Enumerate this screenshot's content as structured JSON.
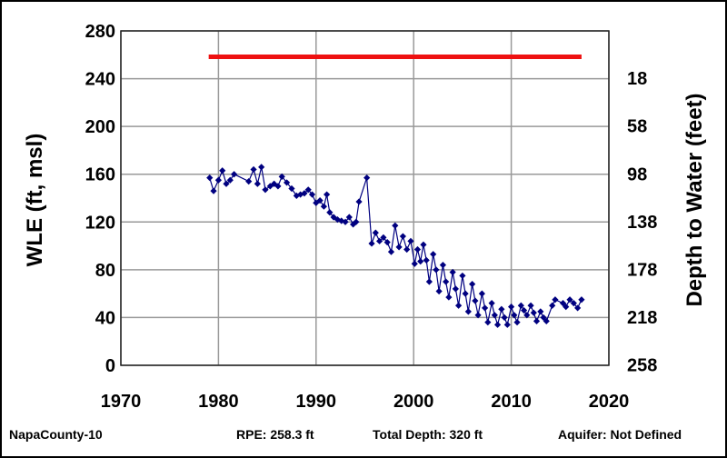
{
  "chart_data": {
    "type": "line",
    "y_left_label": "WLE (ft, msl)",
    "y_right_label": "Depth to Water (feet)",
    "xlim": [
      1970,
      2020
    ],
    "ylim": [
      0,
      280
    ],
    "x_ticks": [
      "1970",
      "1980",
      "1990",
      "2000",
      "2010",
      "2020"
    ],
    "y_left_ticks": [
      "0",
      "40",
      "80",
      "120",
      "160",
      "200",
      "240",
      "280"
    ],
    "y_right_ticks": [
      "258",
      "218",
      "178",
      "138",
      "98",
      "58",
      "18"
    ],
    "grid": true,
    "reference_line": {
      "value": 258.3,
      "x_range": [
        1979,
        2017.2
      ],
      "color": "#ee1111"
    },
    "series": [
      {
        "color": "#000080",
        "points": [
          [
            1979.1,
            157
          ],
          [
            1979.5,
            146
          ],
          [
            1980.0,
            155
          ],
          [
            1980.4,
            163
          ],
          [
            1980.8,
            152
          ],
          [
            1981.2,
            155
          ],
          [
            1981.6,
            160
          ],
          [
            1983.1,
            154
          ],
          [
            1983.6,
            164
          ],
          [
            1984.0,
            152
          ],
          [
            1984.4,
            166
          ],
          [
            1984.8,
            147
          ],
          [
            1985.3,
            150
          ],
          [
            1985.7,
            152
          ],
          [
            1986.1,
            150
          ],
          [
            1986.5,
            158
          ],
          [
            1987.0,
            153
          ],
          [
            1987.5,
            148
          ],
          [
            1988.0,
            142
          ],
          [
            1988.4,
            143
          ],
          [
            1988.8,
            144
          ],
          [
            1989.2,
            147
          ],
          [
            1989.6,
            143
          ],
          [
            1990.0,
            136
          ],
          [
            1990.4,
            138
          ],
          [
            1990.8,
            133
          ],
          [
            1991.1,
            143
          ],
          [
            1991.4,
            128
          ],
          [
            1991.8,
            124
          ],
          [
            1992.2,
            122
          ],
          [
            1992.6,
            121
          ],
          [
            1993.0,
            120
          ],
          [
            1993.4,
            124
          ],
          [
            1993.8,
            118
          ],
          [
            1994.1,
            120
          ],
          [
            1994.4,
            137
          ],
          [
            1995.2,
            157
          ],
          [
            1995.7,
            102
          ],
          [
            1996.1,
            111
          ],
          [
            1996.5,
            104
          ],
          [
            1996.9,
            107
          ],
          [
            1997.3,
            103
          ],
          [
            1997.7,
            95
          ],
          [
            1998.1,
            117
          ],
          [
            1998.5,
            99
          ],
          [
            1998.9,
            108
          ],
          [
            1999.3,
            97
          ],
          [
            1999.7,
            104
          ],
          [
            2000.1,
            85
          ],
          [
            2000.4,
            97
          ],
          [
            2000.7,
            87
          ],
          [
            2001.0,
            101
          ],
          [
            2001.3,
            88
          ],
          [
            2001.6,
            70
          ],
          [
            2002.0,
            93
          ],
          [
            2002.3,
            80
          ],
          [
            2002.6,
            62
          ],
          [
            2003.0,
            84
          ],
          [
            2003.3,
            70
          ],
          [
            2003.6,
            57
          ],
          [
            2004.0,
            78
          ],
          [
            2004.3,
            64
          ],
          [
            2004.6,
            50
          ],
          [
            2005.0,
            75
          ],
          [
            2005.3,
            60
          ],
          [
            2005.6,
            45
          ],
          [
            2006.0,
            68
          ],
          [
            2006.3,
            54
          ],
          [
            2006.6,
            42
          ],
          [
            2007.0,
            60
          ],
          [
            2007.3,
            48
          ],
          [
            2007.6,
            36
          ],
          [
            2008.0,
            52
          ],
          [
            2008.3,
            42
          ],
          [
            2008.6,
            34
          ],
          [
            2009.0,
            47
          ],
          [
            2009.3,
            40
          ],
          [
            2009.6,
            34
          ],
          [
            2010.0,
            49
          ],
          [
            2010.3,
            42
          ],
          [
            2010.6,
            36
          ],
          [
            2011.0,
            50
          ],
          [
            2011.3,
            46
          ],
          [
            2011.6,
            42
          ],
          [
            2012.0,
            50
          ],
          [
            2012.3,
            44
          ],
          [
            2012.6,
            37
          ],
          [
            2013.0,
            45
          ],
          [
            2013.3,
            40
          ],
          [
            2013.6,
            37
          ],
          [
            2014.2,
            50
          ],
          [
            2014.5,
            55
          ],
          [
            2015.3,
            52
          ],
          [
            2015.6,
            49
          ],
          [
            2016.0,
            55
          ],
          [
            2016.4,
            52
          ],
          [
            2016.8,
            48
          ],
          [
            2017.2,
            55
          ]
        ]
      }
    ]
  },
  "footer": {
    "site": "NapaCounty-10",
    "rpe": "RPE: 258.3 ft",
    "total_depth": "Total Depth: 320 ft",
    "aquifer": "Aquifer: Not Defined"
  }
}
